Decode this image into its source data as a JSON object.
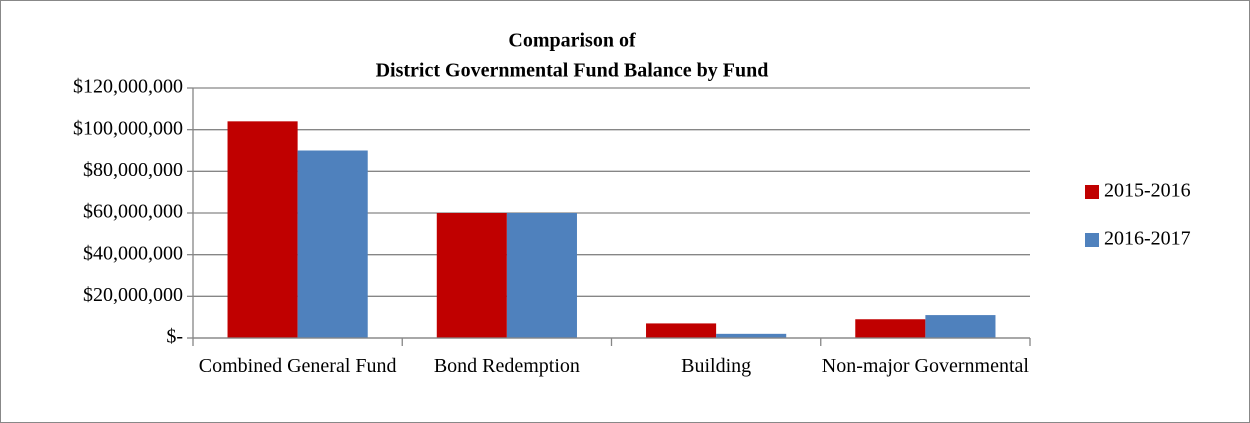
{
  "chart_data": {
    "type": "bar",
    "title": [
      "Comparison of",
      "District Governmental Fund Balance by Fund"
    ],
    "categories": [
      "Combined General Fund",
      "Bond Redemption",
      "Building",
      "Non-major Governmental"
    ],
    "series": [
      {
        "name": "2015-2016",
        "color": "#c00000",
        "values": [
          104000000,
          60000000,
          7000000,
          9000000
        ]
      },
      {
        "name": "2016-2017",
        "color": "#4f81bd",
        "values": [
          90000000,
          60000000,
          2000000,
          11000000
        ]
      }
    ],
    "ylim": [
      0,
      120000000
    ],
    "yticks": [
      {
        "value": 0,
        "label": "$-"
      },
      {
        "value": 20000000,
        "label": "$20,000,000"
      },
      {
        "value": 40000000,
        "label": "$40,000,000"
      },
      {
        "value": 60000000,
        "label": "$60,000,000"
      },
      {
        "value": 80000000,
        "label": "$80,000,000"
      },
      {
        "value": 100000000,
        "label": "$100,000,000"
      },
      {
        "value": 120000000,
        "label": "$120,000,000"
      }
    ],
    "grid": true,
    "legend": "right"
  }
}
